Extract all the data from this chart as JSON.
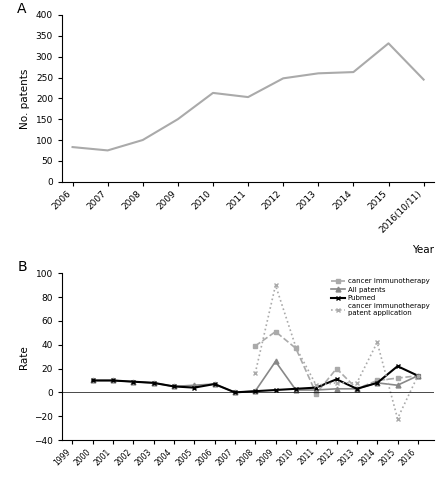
{
  "panel_A": {
    "years": [
      "2006",
      "2007",
      "2008",
      "2009",
      "2010",
      "2011",
      "2012",
      "2013",
      "2014",
      "2015",
      "2016(10/11)"
    ],
    "values": [
      83,
      75,
      100,
      150,
      213,
      203,
      248,
      260,
      263,
      332,
      245
    ],
    "ylabel": "No. patents",
    "xlabel": "Year",
    "ylim": [
      0,
      400
    ],
    "yticks": [
      0,
      50,
      100,
      150,
      200,
      250,
      300,
      350,
      400
    ],
    "color": "#aaaaaa",
    "label": "A"
  },
  "panel_B": {
    "years_pubmed": [
      1999,
      2000,
      2001,
      2002,
      2003,
      2004,
      2005,
      2006,
      2007,
      2008,
      2009,
      2010,
      2011,
      2012,
      2013,
      2014,
      2015,
      2016
    ],
    "pubmed_values": [
      null,
      10,
      10,
      9,
      8,
      5,
      4,
      7,
      0,
      1,
      2,
      3,
      4,
      11,
      3,
      8,
      22,
      14
    ],
    "years_all_patents": [
      1999,
      2000,
      2001,
      2002,
      2003,
      2004,
      2005,
      2006,
      2007,
      2008,
      2009,
      2010,
      2011,
      2012,
      2013,
      2014,
      2015,
      2016
    ],
    "all_patents_values": [
      null,
      10,
      10,
      9,
      8,
      5,
      6,
      7,
      0,
      1,
      26,
      2,
      2,
      3,
      3,
      8,
      6,
      14
    ],
    "years_ci": [
      2008,
      2009,
      2010,
      2011,
      2012,
      2013,
      2014,
      2015,
      2016
    ],
    "ci_values": [
      39,
      51,
      37,
      -1,
      20,
      3,
      10,
      12,
      14
    ],
    "years_app": [
      2008,
      2009,
      2010,
      2011,
      2012,
      2013,
      2014,
      2015,
      2016
    ],
    "app_values": [
      16,
      90,
      38,
      6,
      8,
      8,
      42,
      -22,
      14
    ],
    "ylabel": "Rate",
    "xlabel": "Year",
    "ylim": [
      -40,
      100
    ],
    "yticks": [
      -40,
      -20,
      0,
      20,
      40,
      60,
      80,
      100
    ],
    "label": "B",
    "legend_entries": [
      "cancer immunotherapy",
      "All patents",
      "Pubmed",
      "cancer immunotherapy\npatent application"
    ]
  }
}
